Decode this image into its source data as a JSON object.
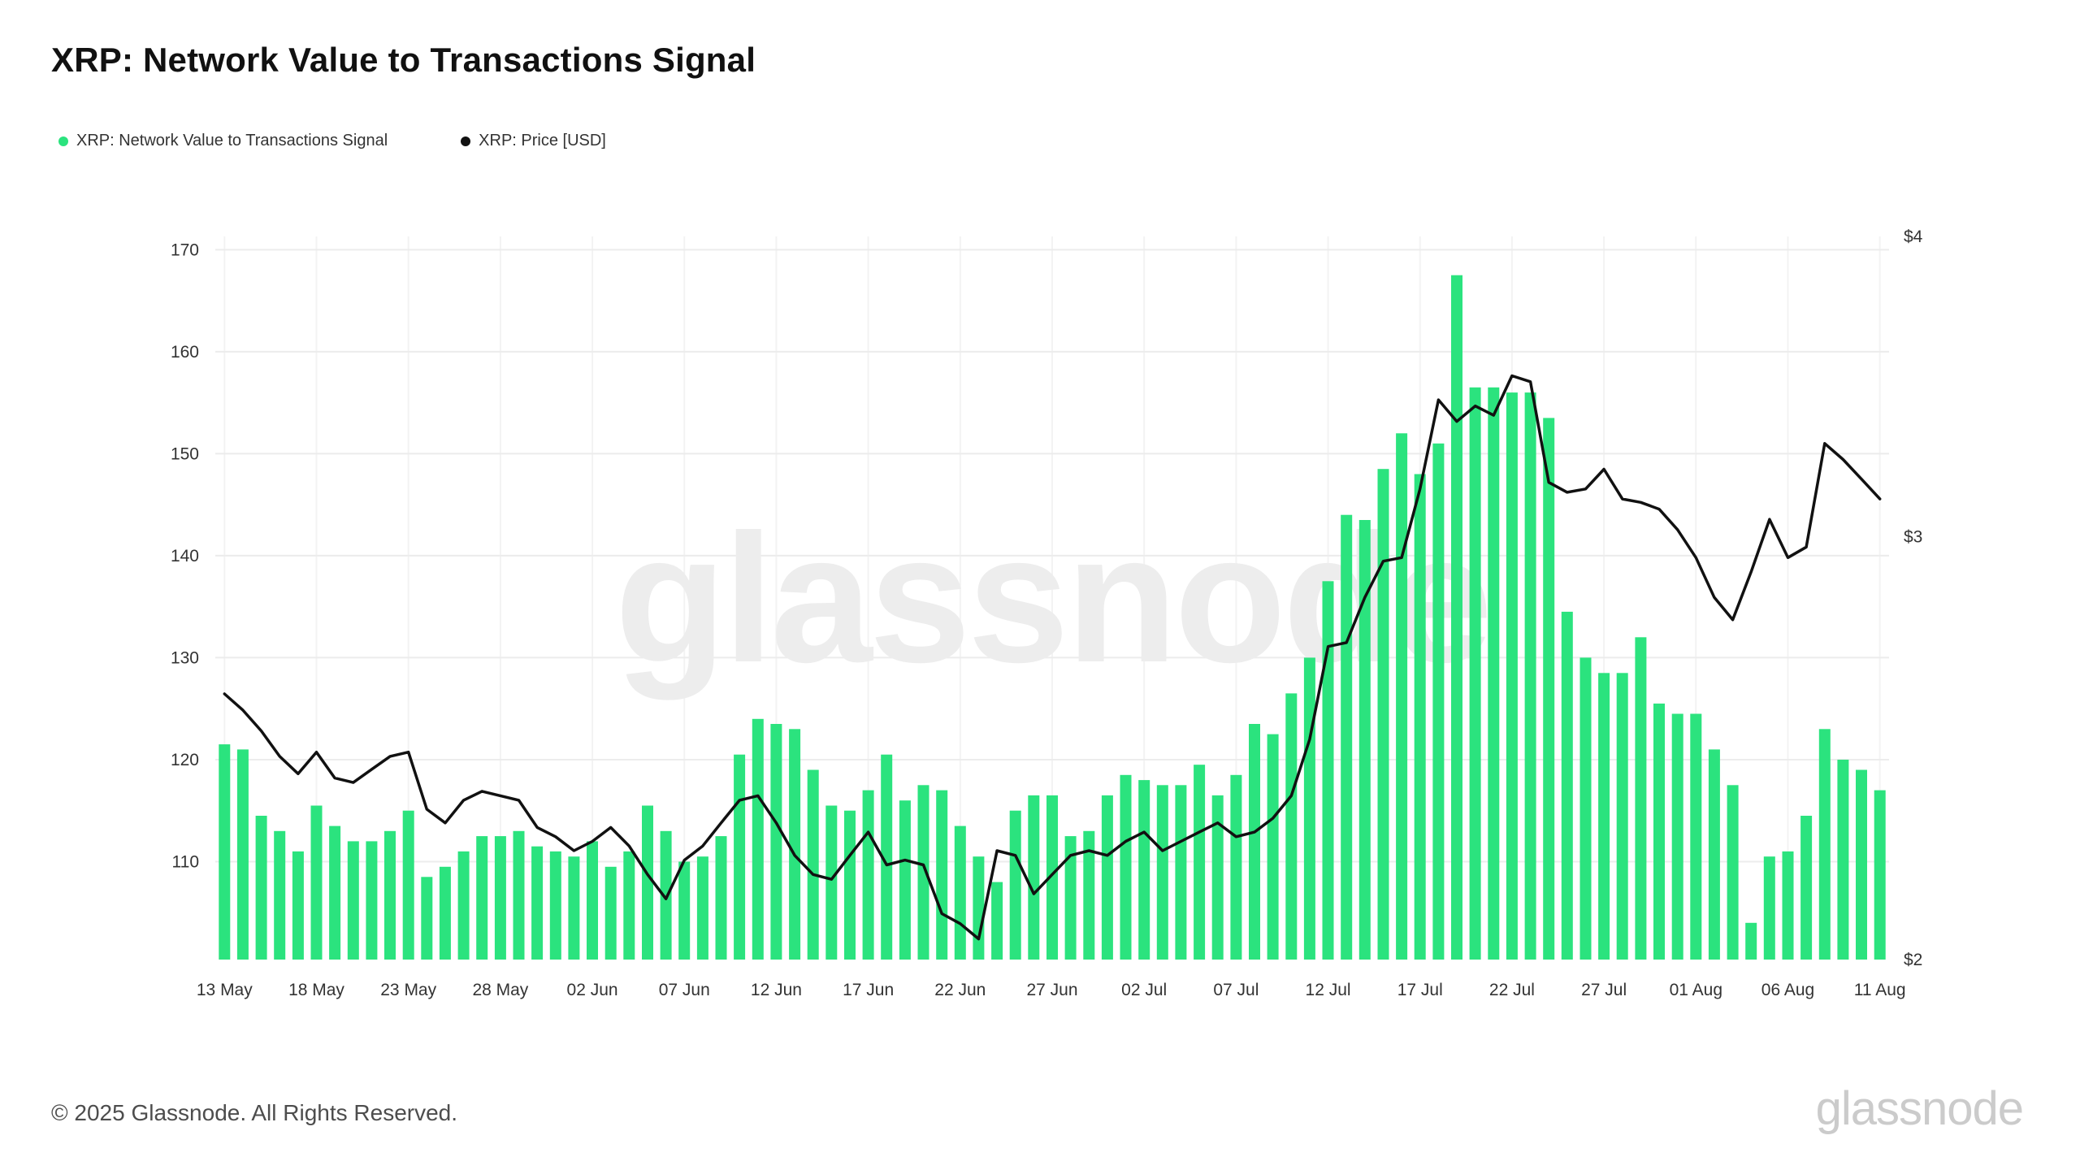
{
  "page": {
    "title": "XRP: Network Value to Transactions Signal",
    "watermark": "glassnode",
    "footer_copyright": "© 2025 Glassnode. All Rights Reserved.",
    "footer_logo": "glassnode"
  },
  "legend": {
    "items": [
      {
        "label": "XRP: Network Value to Transactions Signal",
        "color": "#2be37e"
      },
      {
        "label": "XRP: Price [USD]",
        "color": "#111111"
      }
    ]
  },
  "chart_data": {
    "type": "bar+line",
    "title": "XRP: Network Value to Transactions Signal",
    "x_range": [
      "13 May",
      "11 Aug"
    ],
    "x_tick_labels": [
      "13 May",
      "18 May",
      "23 May",
      "28 May",
      "02 Jun",
      "07 Jun",
      "12 Jun",
      "17 Jun",
      "22 Jun",
      "27 Jun",
      "02 Jul",
      "07 Jul",
      "12 Jul",
      "17 Jul",
      "22 Jul",
      "27 Jul",
      "01 Aug",
      "06 Aug",
      "11 Aug"
    ],
    "x_tick_indices": [
      0,
      5,
      10,
      15,
      20,
      25,
      30,
      35,
      40,
      45,
      50,
      55,
      60,
      65,
      70,
      75,
      80,
      85,
      90
    ],
    "series": [
      {
        "name": "XRP: Network Value to Transactions Signal",
        "type": "bar",
        "axis": "left",
        "color": "#2be37e",
        "values": [
          121.5,
          121,
          114.5,
          113,
          111,
          115.5,
          113.5,
          112,
          112,
          113,
          115,
          108.5,
          109.5,
          111,
          112.5,
          112.5,
          113,
          111.5,
          111,
          110.5,
          112,
          109.5,
          111,
          115.5,
          113,
          110,
          110.5,
          112.5,
          120.5,
          124,
          123.5,
          123,
          119,
          115.5,
          115,
          117,
          120.5,
          116,
          117.5,
          117,
          113.5,
          110.5,
          108,
          115,
          116.5,
          116.5,
          112.5,
          113,
          116.5,
          118.5,
          118,
          117.5,
          117.5,
          119.5,
          116.5,
          118.5,
          123.5,
          122.5,
          126.5,
          130,
          137.5,
          144,
          143.5,
          148.5,
          152,
          148,
          151,
          167.5,
          156.5,
          156.5,
          156,
          156,
          153.5,
          134.5,
          130,
          128.5,
          128.5,
          132,
          125.5,
          124.5,
          124.5,
          121,
          117.5,
          104,
          110.5,
          111,
          114.5,
          123,
          120,
          119,
          117
        ]
      },
      {
        "name": "XRP: Price [USD]",
        "type": "line",
        "axis": "right",
        "color": "#111111",
        "values": [
          2.58,
          2.54,
          2.49,
          2.43,
          2.39,
          2.44,
          2.38,
          2.37,
          2.4,
          2.43,
          2.44,
          2.31,
          2.28,
          2.33,
          2.35,
          2.34,
          2.33,
          2.27,
          2.25,
          2.22,
          2.24,
          2.27,
          2.23,
          2.17,
          2.12,
          2.2,
          2.23,
          2.28,
          2.33,
          2.34,
          2.28,
          2.21,
          2.17,
          2.16,
          2.21,
          2.26,
          2.19,
          2.2,
          2.19,
          2.09,
          2.07,
          2.04,
          2.22,
          2.21,
          2.13,
          2.17,
          2.21,
          2.22,
          2.21,
          2.24,
          2.26,
          2.22,
          2.24,
          2.26,
          2.28,
          2.25,
          2.26,
          2.29,
          2.34,
          2.47,
          2.7,
          2.71,
          2.83,
          2.93,
          2.94,
          3.14,
          3.42,
          3.35,
          3.4,
          3.37,
          3.5,
          3.48,
          3.16,
          3.13,
          3.14,
          3.2,
          3.11,
          3.1,
          3.08,
          3.02,
          2.94,
          2.83,
          2.77,
          2.9,
          3.05,
          2.94,
          2.97,
          3.28,
          3.23,
          3.17,
          3.11
        ]
      }
    ],
    "left_axis": {
      "label": "",
      "ticks": [
        110,
        120,
        130,
        140,
        150,
        160,
        170
      ],
      "min": 100.4,
      "max": 171.3
    },
    "right_axis": {
      "label": "",
      "tick_labels": [
        "$2",
        "$3",
        "$4"
      ],
      "tick_values": [
        2,
        3,
        4
      ],
      "scale": "log",
      "min": 2,
      "max": 4
    },
    "grid": true,
    "legend_position": "top-left"
  }
}
